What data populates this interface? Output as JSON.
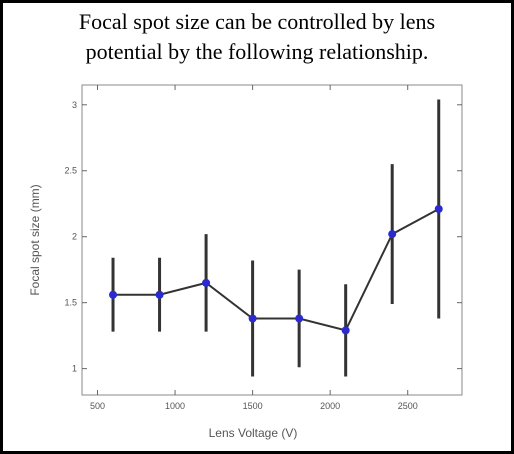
{
  "chart_data": {
    "type": "line",
    "title": [
      "Focal spot size can be controlled by lens",
      "potential by the following relationship."
    ],
    "xlabel": "Lens Voltage (V)",
    "ylabel": "Focal spot size (mm)",
    "x": [
      600,
      900,
      1200,
      1500,
      1800,
      2100,
      2400,
      2700
    ],
    "series": [
      {
        "color": "#2a2ad0",
        "line_color": "#333333",
        "values": [
          1.56,
          1.56,
          1.65,
          1.38,
          1.38,
          1.29,
          2.02,
          2.21
        ],
        "errors": [
          0.28,
          0.28,
          0.37,
          0.44,
          0.37,
          0.35,
          0.53,
          0.83
        ]
      }
    ],
    "xlim": [
      400,
      2850
    ],
    "xticks": [
      500,
      1000,
      1500,
      2000,
      2500
    ],
    "ylim": [
      0.8,
      3.15
    ],
    "yticks": [
      1,
      1.5,
      2,
      2.5,
      3
    ]
  }
}
